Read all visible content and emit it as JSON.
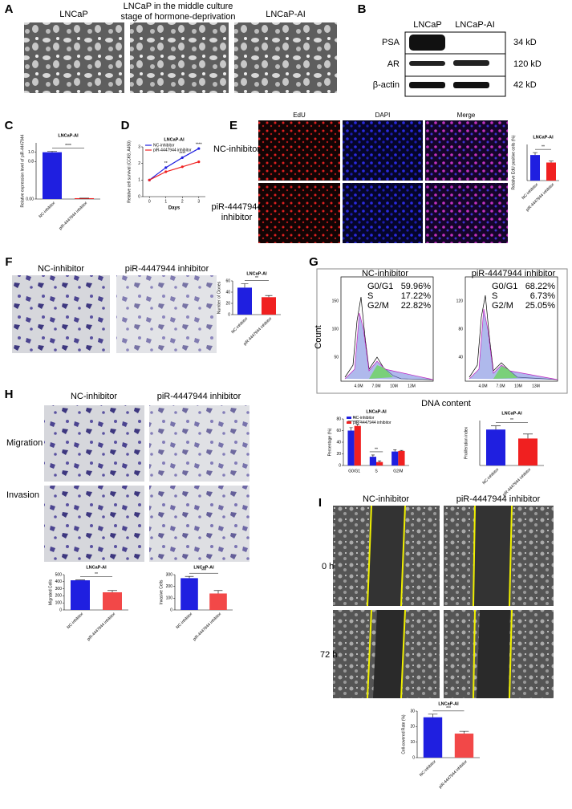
{
  "panel_labels": [
    "A",
    "B",
    "C",
    "D",
    "E",
    "F",
    "G",
    "H",
    "I"
  ],
  "A": {
    "captions": [
      "LNCaP",
      "LNCaP in the middle culture",
      "stage of hormone-deprivation",
      "LNCaP-AI"
    ]
  },
  "B": {
    "columns": [
      "LNCaP",
      "LNCaP-AI"
    ],
    "rows": [
      {
        "protein": "PSA",
        "size": "34 kD"
      },
      {
        "protein": "AR",
        "size": "120 kD"
      },
      {
        "protein": "β-actin",
        "size": "42 kD"
      }
    ]
  },
  "E": {
    "columns": [
      "EdU",
      "DAPI",
      "Merge"
    ],
    "rows": [
      [
        "NC-inhibitor"
      ],
      [
        "piR-4447944",
        "inhibitor"
      ]
    ]
  },
  "F": {
    "columns": [
      "NC-inhibitor",
      "piR-4447944 inhibitor"
    ]
  },
  "G": {
    "columns": [
      "NC-inhibitor",
      "piR-4447944 inhibitor"
    ],
    "y_label": "Count",
    "x_label": "DNA content",
    "x_tick_labels": [
      "4.0M",
      "7.0M",
      "10M",
      "13M"
    ],
    "y_tick_labels": [
      [
        "50",
        "100",
        "150"
      ],
      [
        "40",
        "80",
        "120"
      ]
    ],
    "stats": [
      [
        [
          "G0/G1",
          "59.96%"
        ],
        [
          "S",
          "17.22%"
        ],
        [
          "G2/M",
          "22.82%"
        ]
      ],
      [
        [
          "G0/G1",
          "68.22%"
        ],
        [
          "S",
          "6.73%"
        ],
        [
          "G2/M",
          "25.05%"
        ]
      ]
    ]
  },
  "H": {
    "columns": [
      "NC-inhibitor",
      "piR-4447944 inhibitor"
    ],
    "rows": [
      "Migration",
      "Invasion"
    ]
  },
  "I": {
    "columns": [
      "NC-inhibitor",
      "piR-4447944 inhibitor"
    ],
    "rows": [
      "0 h",
      "72 h"
    ]
  },
  "chart_data": [
    {
      "type": "bar",
      "title": "LNCaP-AI",
      "y_label": "Relative expression level of piR-4447944",
      "categories": [
        "NC-inhibitor",
        "piR-4447944 inhibitor"
      ],
      "values": [
        1.0,
        0.018
      ],
      "errors": [
        0.02,
        0.001
      ],
      "colors": [
        "#1f1fe0",
        "#f02020"
      ],
      "ylim": [
        0,
        1.2
      ],
      "yticks": [
        {
          "value": 0,
          "label": "0.00"
        },
        {
          "value": 0.8,
          "label": "0.8"
        },
        {
          "value": 1,
          "label": "1.0"
        }
      ],
      "annotations": [
        "****"
      ]
    },
    {
      "type": "line",
      "title": "LNCaP-AI",
      "x_label": "Days",
      "y_label": "Relative cell survival (CCK8, A450)",
      "x": [
        0,
        1,
        2,
        3
      ],
      "xlim": [
        -0.4,
        3.4
      ],
      "xticks": [
        0,
        1,
        2,
        3
      ],
      "ylim": [
        0,
        3
      ],
      "yticks": [
        0,
        1,
        2,
        3
      ],
      "series": [
        {
          "name": "NC-inhibitor",
          "color": "#1f1fe0",
          "values": [
            1,
            1.75,
            2.35,
            2.9
          ]
        },
        {
          "name": "piR-4447944 inhibitor",
          "color": "#f02020",
          "values": [
            1,
            1.5,
            1.8,
            2.1
          ]
        }
      ],
      "annotations": [
        "**",
        "****",
        "****"
      ]
    },
    {
      "type": "bar",
      "title": "LNCaP-AI",
      "y_label": "Relative EdU positive cells (%)",
      "categories": [
        "NC-inhibitor",
        "piR-4447944 inhibitor"
      ],
      "values": [
        85,
        60
      ],
      "errors": [
        8,
        5
      ],
      "colors": [
        "#1f1fe0",
        "#f02020"
      ],
      "ylim": [
        0,
        120
      ],
      "annotations": [
        "**"
      ]
    },
    {
      "type": "bar",
      "title": "LNCaP-AI",
      "y_label": "Number of Clones",
      "categories": [
        "NC-inhibitor",
        "piR-4447944 inhibitor"
      ],
      "values": [
        48,
        31
      ],
      "errors": [
        7,
        3
      ],
      "colors": [
        "#1f1fe0",
        "#f02020"
      ],
      "ylim": [
        0,
        60
      ],
      "yticks": [
        0,
        20,
        40,
        60
      ],
      "annotations": [
        "**"
      ]
    },
    {
      "type": "bar",
      "title": "LNCaP-AI",
      "y_label": "Percentage (%)",
      "categories": [
        "G0/G1",
        "S",
        "G2/M"
      ],
      "series": [
        {
          "name": "NC-inhibitor",
          "color": "#1f1fe0",
          "values": [
            60,
            15,
            24
          ],
          "errors": [
            5,
            3,
            3
          ]
        },
        {
          "name": "piR-4447944 inhibitor",
          "color": "#f02020",
          "values": [
            68,
            6,
            25
          ],
          "errors": [
            3,
            2,
            1
          ]
        }
      ],
      "ylim": [
        0,
        80
      ],
      "yticks": [
        0,
        20,
        40,
        60,
        80
      ],
      "annotations": [
        "**",
        "**"
      ]
    },
    {
      "type": "bar",
      "title": "LNCaP-AI",
      "y_label": "Proliferation index",
      "categories": [
        "NC-inhibitor",
        "piR-4447944 inhibitor"
      ],
      "values": [
        40,
        30
      ],
      "errors": [
        4,
        5
      ],
      "colors": [
        "#1f1fe0",
        "#f02020"
      ],
      "ylim": [
        0,
        50
      ],
      "annotations": [
        "**"
      ]
    },
    {
      "type": "bar",
      "title": "LNCaP-AI",
      "y_label": "Migrated Cells",
      "categories": [
        "NC-inhibitor",
        "piR-4447944 inhibitor"
      ],
      "values": [
        420,
        250
      ],
      "errors": [
        5,
        25
      ],
      "colors": [
        "#1f1fe0",
        "#f24848"
      ],
      "ylim": [
        0,
        500
      ],
      "yticks": [
        0,
        100,
        200,
        300,
        400,
        500
      ],
      "annotations": [
        "**"
      ]
    },
    {
      "type": "bar",
      "title": "LNCaP-AI",
      "y_label": "Invasive Cells",
      "categories": [
        "NC-inhibitor",
        "piR-4447944 inhibitor"
      ],
      "values": [
        270,
        140
      ],
      "errors": [
        15,
        25
      ],
      "colors": [
        "#1f1fe0",
        "#f24848"
      ],
      "ylim": [
        0,
        300
      ],
      "yticks": [
        0,
        100,
        200,
        300
      ],
      "annotations": [
        "***"
      ]
    },
    {
      "type": "bar",
      "title": "LNCaP-AI",
      "y_label": "Cell-covered Rate (%)",
      "categories": [
        "NC-inhibitor",
        "piR-4447944 inhibitor"
      ],
      "values": [
        26,
        15.5
      ],
      "errors": [
        2,
        1.5
      ],
      "colors": [
        "#1f1fe0",
        "#f24848"
      ],
      "ylim": [
        0,
        30
      ],
      "yticks": [
        0,
        10,
        20,
        30
      ],
      "annotations": [
        "***"
      ]
    }
  ]
}
